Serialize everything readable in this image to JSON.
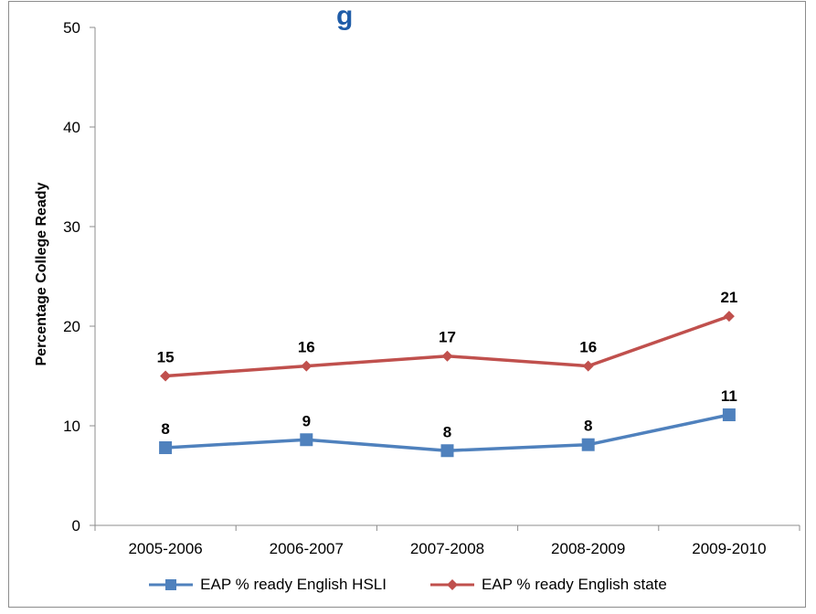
{
  "colors": {
    "hsli": "#4f81bd",
    "state": "#c0504d",
    "title": "#1f5ca8",
    "axis": "#8c8c8c"
  },
  "chart_data": {
    "type": "line",
    "title": "",
    "title_partial": "g",
    "ylabel": "Percentage College Ready",
    "xlabel": "",
    "categories": [
      "2005-2006",
      "2006-2007",
      "2007-2008",
      "2008-2009",
      "2009-2010"
    ],
    "ylim": [
      0,
      50
    ],
    "yticks": [
      0,
      10,
      20,
      30,
      40,
      50
    ],
    "grid": false,
    "legend_position": "bottom",
    "series": [
      {
        "name": "EAP % ready English HSLI",
        "marker": "square",
        "values": [
          7.8,
          8.6,
          7.5,
          8.1,
          11.1
        ],
        "labels": [
          "8",
          "9",
          "8",
          "8",
          "11"
        ]
      },
      {
        "name": "EAP % ready English state",
        "marker": "diamond",
        "values": [
          15,
          16,
          17,
          16,
          21
        ],
        "labels": [
          "15",
          "16",
          "17",
          "16",
          "21"
        ]
      }
    ]
  }
}
